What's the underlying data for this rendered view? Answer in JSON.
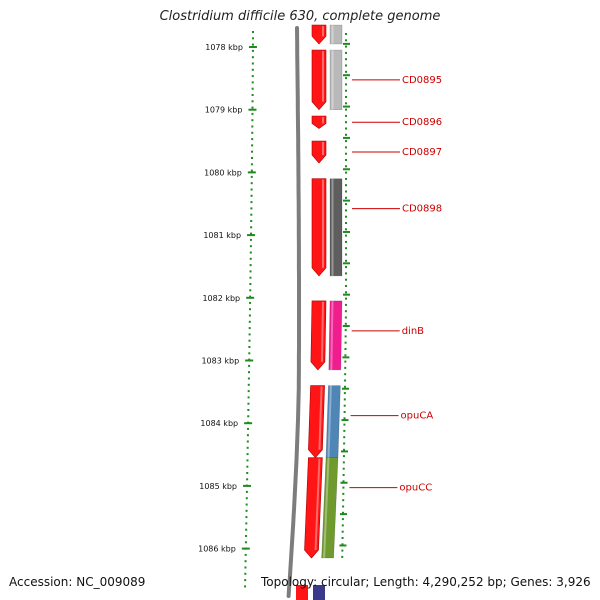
{
  "title": "Clostridium difficile 630, complete genome",
  "footer": {
    "accession": "Accession: NC_009089",
    "summary": "Topology: circular; Length: 4,290,252 bp; Genes: 3,926"
  },
  "ruler": {
    "unit": "kbp",
    "ticks": [
      {
        "kbp": 1078,
        "label": "1078 kbp"
      },
      {
        "kbp": 1079,
        "label": "1079 kbp"
      },
      {
        "kbp": 1080,
        "label": "1080 kbp"
      },
      {
        "kbp": 1081,
        "label": "1081 kbp"
      },
      {
        "kbp": 1082,
        "label": "1082 kbp"
      },
      {
        "kbp": 1083,
        "label": "1083 kbp"
      },
      {
        "kbp": 1084,
        "label": "1084 kbp"
      },
      {
        "kbp": 1085,
        "label": "1085 kbp"
      },
      {
        "kbp": 1086,
        "label": "1086 kbp"
      }
    ]
  },
  "genes": [
    {
      "name": "",
      "start_kbp": 1077.65,
      "end_kbp": 1077.95,
      "category_color": "#b9b9b9"
    },
    {
      "name": "CD0895",
      "start_kbp": 1078.05,
      "end_kbp": 1079.0,
      "category_color": "#b9b9b9"
    },
    {
      "name": "CD0896",
      "start_kbp": 1079.1,
      "end_kbp": 1079.3
    },
    {
      "name": "CD0897",
      "start_kbp": 1079.5,
      "end_kbp": 1079.85
    },
    {
      "name": "CD0898",
      "start_kbp": 1080.1,
      "end_kbp": 1081.65,
      "category_color": "#5e5e5e"
    },
    {
      "name": "dinB",
      "start_kbp": 1082.05,
      "end_kbp": 1083.15,
      "category_color": "#f01d8e"
    },
    {
      "name": "opuCA",
      "start_kbp": 1083.4,
      "end_kbp": 1084.55,
      "category_color": "#4f86b5"
    },
    {
      "name": "opuCC",
      "start_kbp": 1084.55,
      "end_kbp": 1086.15,
      "category_color": "#6f9a2e"
    }
  ],
  "colors": {
    "gene": "#ff1515",
    "ruler": "#1f8a1f",
    "backbone": "#7d7d7d",
    "label": "#cc0000"
  }
}
